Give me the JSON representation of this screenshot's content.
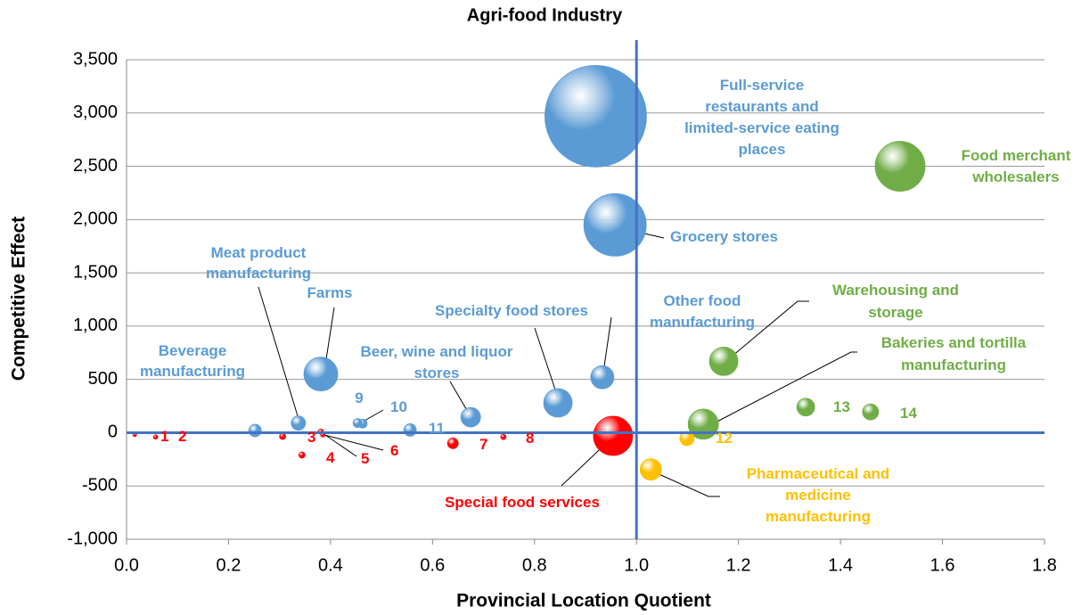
{
  "chart_data": {
    "type": "bubble",
    "title": "Agri-food Industry",
    "x_label": "Provincial Location Quotient",
    "y_label": "Competitive Effect",
    "xlim": [
      0,
      1.8
    ],
    "ylim": [
      -1000,
      3500
    ],
    "xticks": [
      {
        "value": 0,
        "label": "0.0"
      },
      {
        "value": 0.2,
        "label": "0.2"
      },
      {
        "value": 0.4,
        "label": "0.4"
      },
      {
        "value": 0.6,
        "label": "0.6"
      },
      {
        "value": 0.8,
        "label": "0.8"
      },
      {
        "value": 1,
        "label": "1.0"
      },
      {
        "value": 1.2,
        "label": "1.2"
      },
      {
        "value": 1.4,
        "label": "1.4"
      },
      {
        "value": 1.6,
        "label": "1.6"
      },
      {
        "value": 1.8,
        "label": "1.8"
      }
    ],
    "yticks": [
      {
        "value": -1000,
        "label": "-1,000"
      },
      {
        "value": -500,
        "label": "-500"
      },
      0,
      {
        "value": 500,
        "label": "500"
      },
      {
        "value": 1000,
        "label": "1,000"
      },
      {
        "value": 1500,
        "label": "1,500"
      },
      {
        "value": 2000,
        "label": "2,000"
      },
      {
        "value": 2500,
        "label": "2,500"
      },
      {
        "value": 3000,
        "label": "3,000"
      },
      {
        "value": 3500,
        "label": "3,500"
      }
    ],
    "grid": true,
    "reference_lines": {
      "x": 1,
      "y": 0,
      "color": "#4472c4"
    },
    "x": [
      0.92,
      0.958,
      1.517,
      1.171,
      1.131,
      1.332,
      1.459,
      1.099,
      1.028,
      0.954,
      0.933,
      0.846,
      0.675,
      0.556,
      0.463,
      0.453,
      0.381,
      0.337,
      0.252,
      0.016,
      0.057,
      0.306,
      0.344,
      0.381,
      0.385,
      0.64,
      0.739
    ],
    "values": [
      2970,
      1950,
      2500,
      670,
      80,
      240,
      195,
      -55,
      -345,
      -30,
      520,
      280,
      145,
      25,
      85,
      90,
      550,
      90,
      20,
      -20,
      -40,
      -35,
      -210,
      10,
      -20,
      -100,
      -40
    ],
    "sizes": [
      3250,
      1225,
      784,
      256,
      289,
      100,
      81,
      64,
      144,
      484,
      169,
      256,
      121,
      49,
      25,
      25,
      361,
      64,
      49,
      4,
      6,
      12,
      12,
      9,
      6,
      36,
      9
    ],
    "colors": [
      "#5b9bd5",
      "#5b9bd5",
      "#70ad47",
      "#70ad47",
      "#70ad47",
      "#70ad47",
      "#70ad47",
      "#ffc000",
      "#ffc000",
      "#ff0000",
      "#5b9bd5",
      "#5b9bd5",
      "#5b9bd5",
      "#5b9bd5",
      "#5b9bd5",
      "#5b9bd5",
      "#5b9bd5",
      "#5b9bd5",
      "#5b9bd5",
      "#ff0000",
      "#ff0000",
      "#ff0000",
      "#ff0000",
      "#ff0000",
      "#ff0000",
      "#ff0000",
      "#ff0000"
    ],
    "labels": [
      [
        "Full-service",
        "restaurants and",
        "limited-service  eating",
        "places"
      ],
      [
        "Grocery stores"
      ],
      [
        "Food merchant",
        "wholesalers"
      ],
      [
        "Warehousing and",
        "storage"
      ],
      [
        "Bakeries and tortilla",
        "manufacturing"
      ],
      [
        "13"
      ],
      [
        "14"
      ],
      [
        "12"
      ],
      [
        "Pharmaceutical  and",
        "medicine",
        "manufacturing"
      ],
      [
        "Special food services"
      ],
      [
        "Other food",
        "manufacturing"
      ],
      [
        "Specialty  food stores"
      ],
      [
        "Beer, wine and liquor",
        "stores"
      ],
      [
        "11"
      ],
      [
        "10"
      ],
      [
        "9"
      ],
      [
        "Farms"
      ],
      [
        "Meat product",
        "manufacturing"
      ],
      [
        "Beverage",
        "manufacturing"
      ],
      [
        "1"
      ],
      [
        "2"
      ],
      [
        "3"
      ],
      [
        "4"
      ],
      [
        "5"
      ],
      [
        "6"
      ],
      [
        "7"
      ],
      [
        "8"
      ]
    ]
  }
}
